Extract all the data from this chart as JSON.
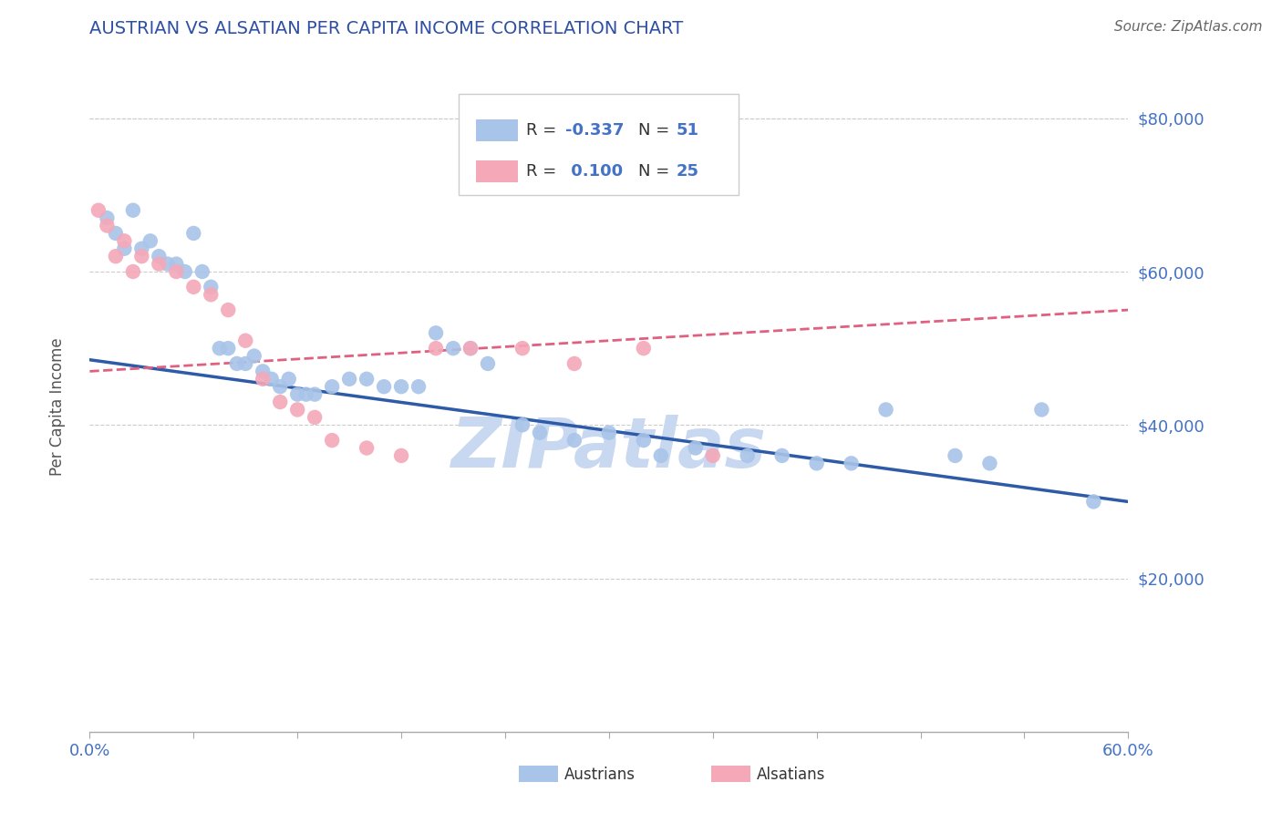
{
  "title": "AUSTRIAN VS ALSATIAN PER CAPITA INCOME CORRELATION CHART",
  "source_text": "Source: ZipAtlas.com",
  "ylabel": "Per Capita Income",
  "xlim": [
    0.0,
    0.6
  ],
  "ylim": [
    0,
    88000
  ],
  "yticks": [
    20000,
    40000,
    60000,
    80000
  ],
  "ytick_labels": [
    "$20,000",
    "$40,000",
    "$60,000",
    "$80,000"
  ],
  "title_color": "#2E4FA3",
  "axis_color": "#4472C4",
  "watermark": "ZIPatlas",
  "watermark_color": "#C8D8F0",
  "dot_color_austrians": "#A8C4E8",
  "dot_color_alsatians": "#F4A8B8",
  "line_color_austrians": "#2E5BA8",
  "line_color_alsatians": "#E06080",
  "legend_label1": "Austrians",
  "legend_label2": "Alsatians",
  "austrians_x": [
    0.01,
    0.015,
    0.02,
    0.025,
    0.03,
    0.035,
    0.04,
    0.045,
    0.05,
    0.055,
    0.06,
    0.065,
    0.07,
    0.075,
    0.08,
    0.085,
    0.09,
    0.095,
    0.1,
    0.105,
    0.11,
    0.115,
    0.12,
    0.125,
    0.13,
    0.14,
    0.15,
    0.16,
    0.17,
    0.18,
    0.19,
    0.2,
    0.21,
    0.22,
    0.23,
    0.25,
    0.26,
    0.28,
    0.3,
    0.32,
    0.33,
    0.35,
    0.38,
    0.4,
    0.42,
    0.44,
    0.46,
    0.5,
    0.52,
    0.55,
    0.58
  ],
  "austrians_y": [
    67000,
    65000,
    63000,
    68000,
    63000,
    64000,
    62000,
    61000,
    61000,
    60000,
    65000,
    60000,
    58000,
    50000,
    50000,
    48000,
    48000,
    49000,
    47000,
    46000,
    45000,
    46000,
    44000,
    44000,
    44000,
    45000,
    46000,
    46000,
    45000,
    45000,
    45000,
    52000,
    50000,
    50000,
    48000,
    40000,
    39000,
    38000,
    39000,
    38000,
    36000,
    37000,
    36000,
    36000,
    35000,
    35000,
    42000,
    36000,
    35000,
    42000,
    30000
  ],
  "alsatians_x": [
    0.005,
    0.01,
    0.015,
    0.02,
    0.025,
    0.03,
    0.04,
    0.05,
    0.06,
    0.07,
    0.08,
    0.09,
    0.1,
    0.11,
    0.12,
    0.13,
    0.14,
    0.16,
    0.18,
    0.2,
    0.22,
    0.25,
    0.28,
    0.32,
    0.36
  ],
  "alsatians_y": [
    68000,
    66000,
    62000,
    64000,
    60000,
    62000,
    61000,
    60000,
    58000,
    57000,
    55000,
    51000,
    46000,
    43000,
    42000,
    41000,
    38000,
    37000,
    36000,
    50000,
    50000,
    50000,
    48000,
    50000,
    36000
  ],
  "austrians_trend_x": [
    0.0,
    0.6
  ],
  "austrians_trend_y": [
    48500,
    30000
  ],
  "alsatians_trend_x": [
    0.0,
    0.6
  ],
  "alsatians_trend_y": [
    47000,
    55000
  ],
  "grid_color": "#CCCCCC",
  "n_xticks": 10
}
